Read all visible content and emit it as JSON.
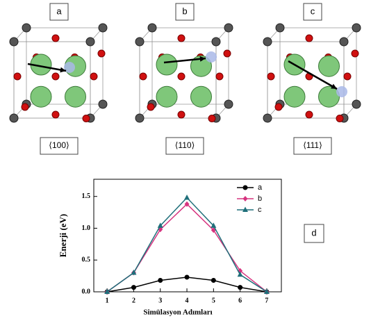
{
  "panels": [
    {
      "label": "a",
      "direction": "⟨100⟩"
    },
    {
      "label": "b",
      "direction": "⟨110⟩"
    },
    {
      "label": "c",
      "direction": "⟨111⟩"
    }
  ],
  "panel_d_label": "d",
  "chart_data": {
    "type": "line",
    "x_label": "Simülasyon Adımları",
    "y_label": "Enerji (eV)",
    "x": [
      1,
      2,
      3,
      4,
      5,
      6,
      7
    ],
    "series": [
      {
        "name": "a",
        "color": "#000000",
        "marker": "circle",
        "values": [
          0,
          0.07,
          0.18,
          0.23,
          0.18,
          0.07,
          0
        ]
      },
      {
        "name": "b",
        "color": "#d6337f",
        "marker": "diamond",
        "values": [
          0,
          0.3,
          0.98,
          1.38,
          0.97,
          0.33,
          0
        ]
      },
      {
        "name": "c",
        "color": "#1f6f7a",
        "marker": "triangle",
        "values": [
          0,
          0.3,
          1.04,
          1.48,
          1.04,
          0.27,
          0
        ]
      }
    ],
    "xlim": [
      0.5,
      7.55
    ],
    "ylim": [
      0,
      1.77
    ],
    "xticks": [
      1,
      2,
      3,
      4,
      5,
      6,
      7
    ],
    "yticks": [
      {
        "value": 0,
        "label": "0.0"
      },
      {
        "value": 0.5,
        "label": "0.5"
      },
      {
        "value": 1,
        "label": "1.0"
      },
      {
        "value": 1.5,
        "label": "1.5"
      }
    ],
    "legend": "upper right",
    "grid": false
  }
}
